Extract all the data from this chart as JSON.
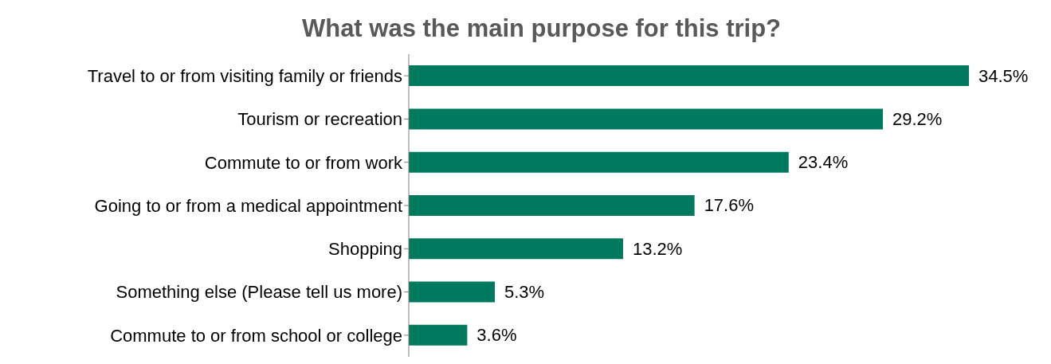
{
  "chart_data": {
    "type": "bar",
    "orientation": "horizontal",
    "title": "What was the main purpose for this trip?",
    "categories": [
      "Travel to or from visiting family or friends",
      "Tourism or recreation",
      "Commute to or from work",
      "Going to or from a medical appointment",
      "Shopping",
      "Something else (Please tell us more)",
      "Commute to or from school or college"
    ],
    "values": [
      34.5,
      29.2,
      23.4,
      17.6,
      13.2,
      5.3,
      3.6
    ],
    "value_labels": [
      "34.5%",
      "29.2%",
      "23.4%",
      "17.6%",
      "13.2%",
      "5.3%",
      "3.6%"
    ],
    "color": "#007a5e"
  }
}
